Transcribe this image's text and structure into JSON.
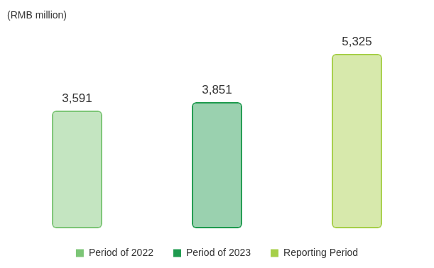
{
  "chart_data": {
    "type": "bar",
    "title": "(RMB million)",
    "categories": [
      null
    ],
    "series": [
      {
        "name": "Period of 2022",
        "color": "#7cc576",
        "values": [
          3591
        ],
        "value_labels": [
          "3,591"
        ]
      },
      {
        "name": "Period of 2023",
        "color": "#1e9a4e",
        "values": [
          3851
        ],
        "value_labels": [
          "3,851"
        ]
      },
      {
        "name": "Reporting Period",
        "color": "#a6cf48",
        "values": [
          5325
        ],
        "value_labels": [
          "5,325"
        ]
      }
    ],
    "data_labels": true,
    "legend": "bottom",
    "tick_labels": false,
    "grid": false
  }
}
